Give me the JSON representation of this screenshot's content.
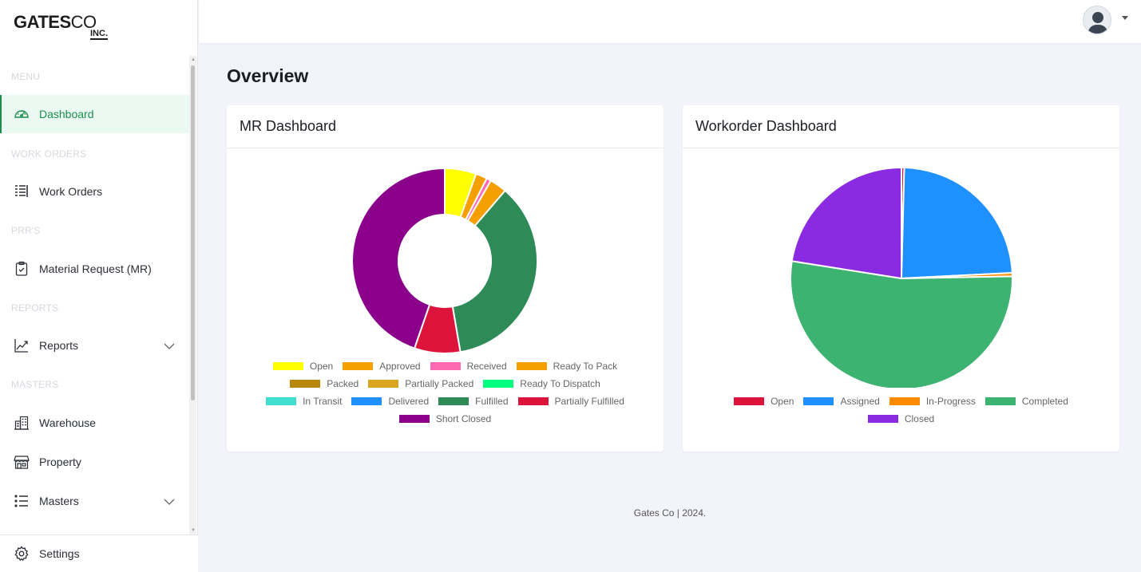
{
  "brand": {
    "line1_bold": "GATES",
    "line1_light": "CO",
    "line2": "INC."
  },
  "sidebar": {
    "sections": [
      "MENU",
      "WORK ORDERS",
      "PRR'S",
      "REPORTS",
      "MASTERS"
    ],
    "items": [
      {
        "label": "Dashboard",
        "icon": "speedometer-icon",
        "active": true
      },
      {
        "label": "Work Orders",
        "icon": "list-lines-icon"
      },
      {
        "label": "Material Request (MR)",
        "icon": "clipboard-check-icon"
      },
      {
        "label": "Reports",
        "icon": "trending-up-icon",
        "expandable": true
      },
      {
        "label": "Warehouse",
        "icon": "buildings-icon"
      },
      {
        "label": "Property",
        "icon": "storefront-icon"
      },
      {
        "label": "Masters",
        "icon": "list-bullets-icon",
        "expandable": true
      }
    ],
    "settings_label": "Settings"
  },
  "page": {
    "title": "Overview"
  },
  "mr_card": {
    "title": "MR Dashboard"
  },
  "wo_card": {
    "title": "Workorder Dashboard"
  },
  "footer": {
    "text": "Gates Co | 2024."
  },
  "colors": {
    "accent": "#1e8e4c",
    "active_bg": "#eafaf2"
  },
  "chart_data": [
    {
      "type": "doughnut",
      "title": "MR Dashboard",
      "categories": [
        "Open",
        "Approved",
        "Received",
        "Ready To Pack",
        "Packed",
        "Partially Packed",
        "Ready To Dispatch",
        "In Transit",
        "Delivered",
        "Fulfilled",
        "Partially Fulfilled",
        "Short Closed"
      ],
      "values": [
        5.5,
        2.0,
        0.8,
        3.0,
        0,
        0,
        0,
        0,
        0,
        36.0,
        8.0,
        44.7
      ],
      "colors": [
        "#ffff00",
        "#f5a000",
        "#ff69b4",
        "#f5a000",
        "#b8860b",
        "#daa520",
        "#00ff7f",
        "#40e0d0",
        "#1e90ff",
        "#2e8b57",
        "#dc143c",
        "#8b008b"
      ],
      "legend_rows": [
        [
          0,
          1,
          2,
          3
        ],
        [
          4,
          5,
          6
        ],
        [
          7,
          8,
          9,
          10
        ],
        [
          11
        ]
      ],
      "legend": "bottom"
    },
    {
      "type": "pie",
      "title": "Workorder Dashboard",
      "categories": [
        "Open",
        "Assigned",
        "In-Progress",
        "Completed",
        "Closed"
      ],
      "values": [
        0.4,
        23.8,
        0.5,
        52.8,
        22.5
      ],
      "colors": [
        "#dc143c",
        "#1e90ff",
        "#ff8c00",
        "#3cb371",
        "#8a2be2"
      ],
      "legend_rows": [
        [
          0,
          1,
          2,
          3
        ],
        [
          4
        ]
      ],
      "legend": "bottom"
    }
  ]
}
